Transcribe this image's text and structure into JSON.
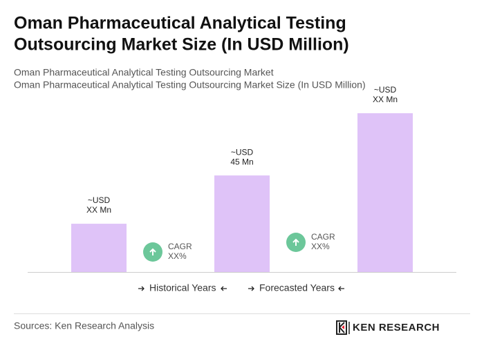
{
  "chart_data": {
    "type": "bar",
    "title": [
      "Oman Pharmaceutical Analytical Testing",
      "Outsourcing Market Size (In USD Million)"
    ],
    "subtitle": [
      "Oman Pharmaceutical Analytical Testing Outsourcing Market",
      "Oman Pharmaceutical Analytical Testing Outsourcing Market Size (In USD Million)"
    ],
    "values": [
      22.5,
      45,
      74
    ],
    "value_labels": [
      [
        "~USD",
        "XX Mn"
      ],
      [
        "~USD",
        "45 Mn"
      ],
      [
        "~USD",
        "XX Mn"
      ]
    ],
    "color": "#dfc3f8",
    "annotations": [
      [
        "CAGR",
        "XX%"
      ],
      [
        "CAGR",
        "XX%"
      ]
    ],
    "annotation_color": "#6cc79a",
    "legend": [
      "Historical Years",
      "Forecasted Years"
    ],
    "source": "Sources: Ken Research Analysis",
    "logo": "KEN RESEARCH"
  }
}
